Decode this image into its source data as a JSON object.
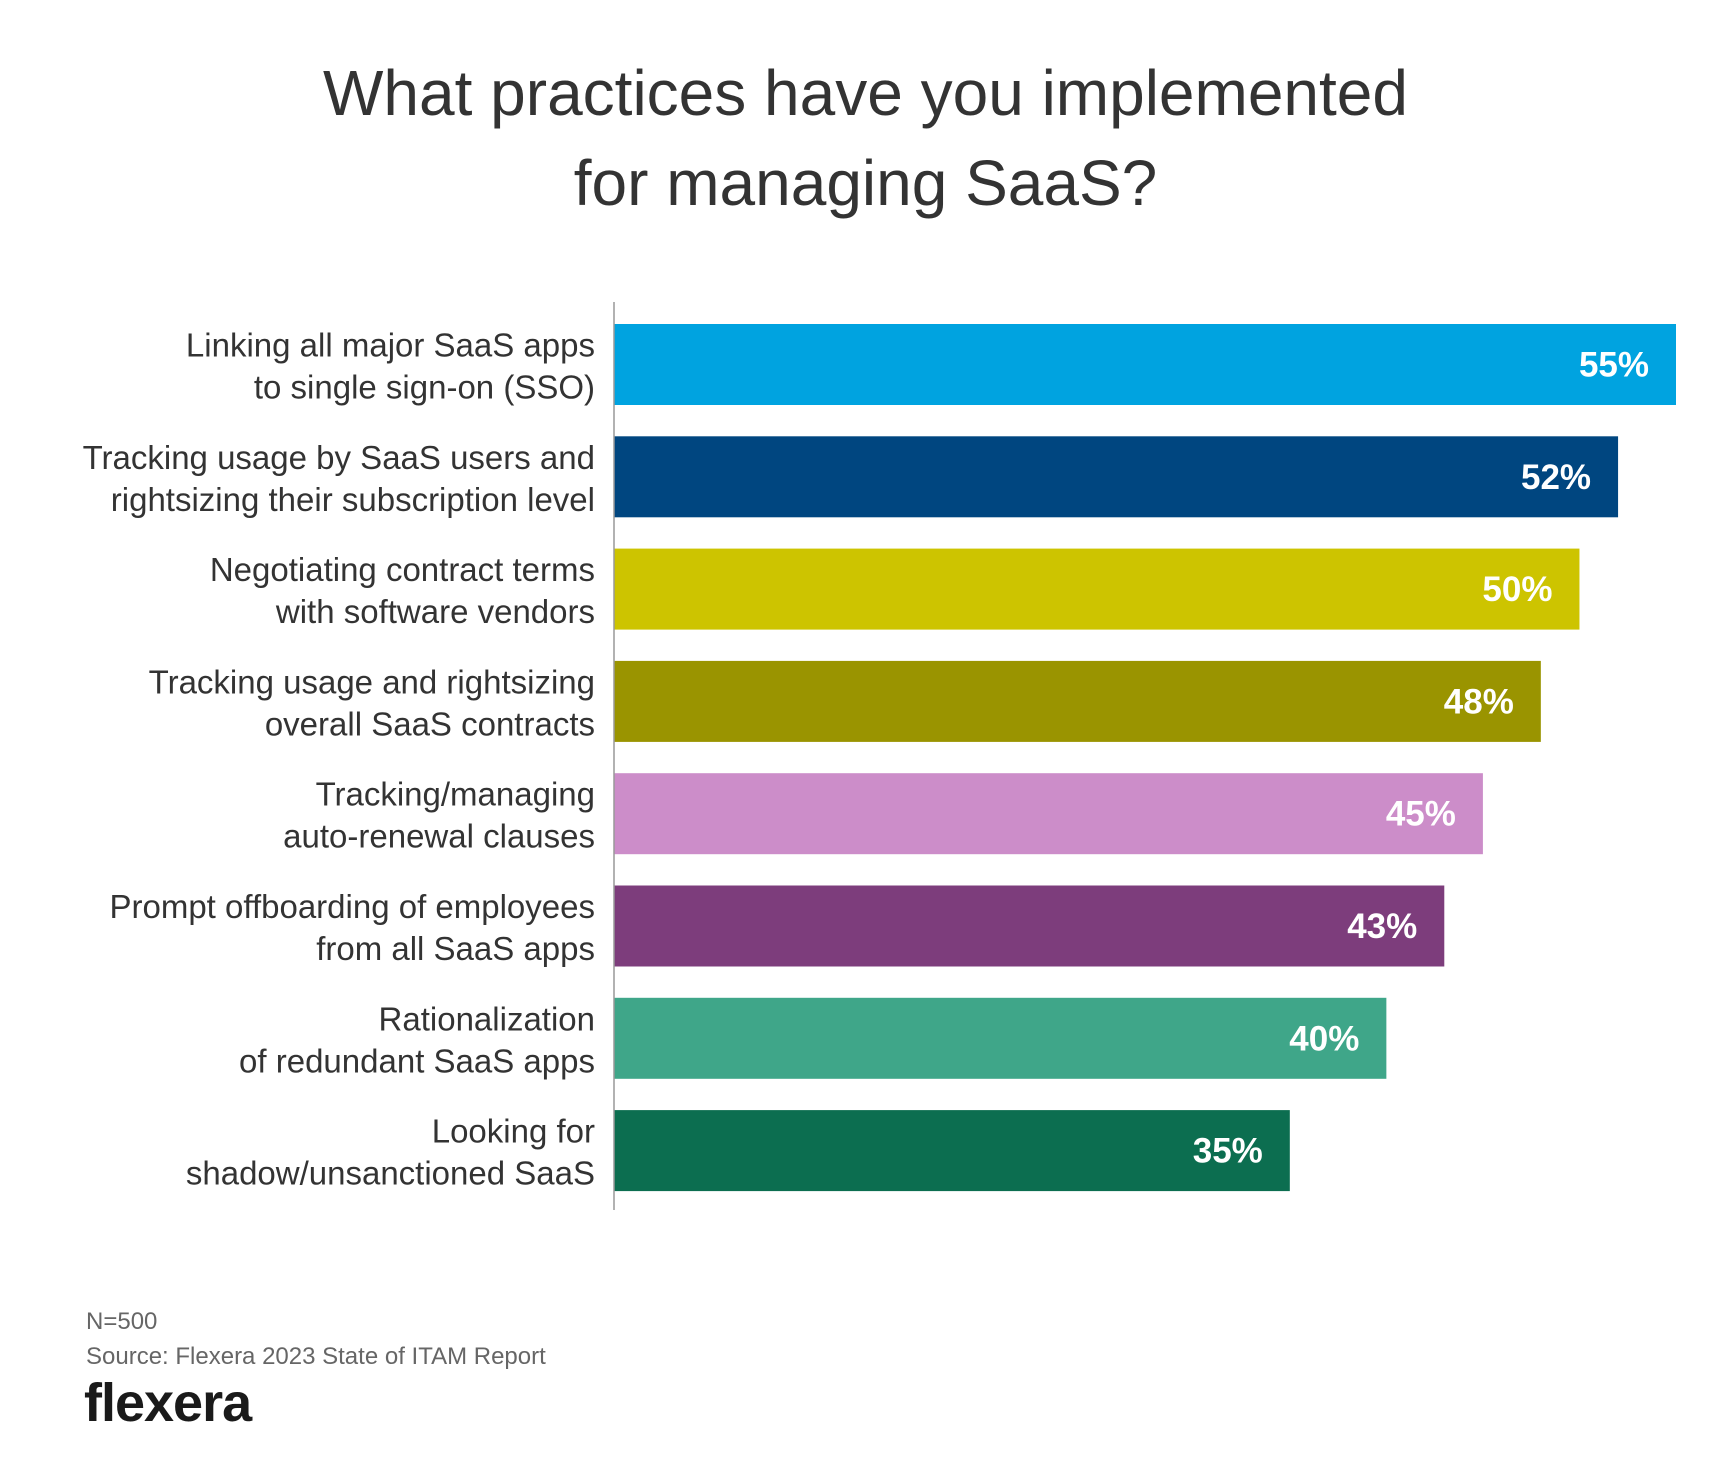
{
  "chart_data": {
    "type": "bar",
    "orientation": "horizontal",
    "title_lines": [
      "What practices have you implemented",
      "for managing SaaS?"
    ],
    "categories": [
      [
        "Linking all major SaaS apps",
        "to single sign-on (SSO)"
      ],
      [
        "Tracking usage by SaaS users and",
        "rightsizing their subscription level"
      ],
      [
        "Negotiating contract terms",
        "with software vendors"
      ],
      [
        "Tracking usage and rightsizing",
        "overall SaaS contracts"
      ],
      [
        "Tracking/managing",
        "auto-renewal clauses"
      ],
      [
        "Prompt offboarding of employees",
        "from all SaaS apps"
      ],
      [
        "Rationalization",
        "of redundant SaaS apps"
      ],
      [
        "Looking for",
        "shadow/unsanctioned SaaS"
      ]
    ],
    "values": [
      55,
      52,
      50,
      48,
      45,
      43,
      40,
      35
    ],
    "value_labels": [
      "55%",
      "52%",
      "50%",
      "48%",
      "45%",
      "43%",
      "40%",
      "35%"
    ],
    "colors": [
      "#00a3e0",
      "#004680",
      "#cdc400",
      "#9a9400",
      "#cc8dc9",
      "#7d3d7c",
      "#3fa689",
      "#0c6e50"
    ],
    "xlim": [
      0,
      55
    ],
    "grid": false,
    "legend": "none"
  },
  "footer": {
    "n": "N=500",
    "source": "Source: Flexera 2023 State of ITAM Report",
    "logo": "flexera",
    "logo_tm": "TM"
  }
}
